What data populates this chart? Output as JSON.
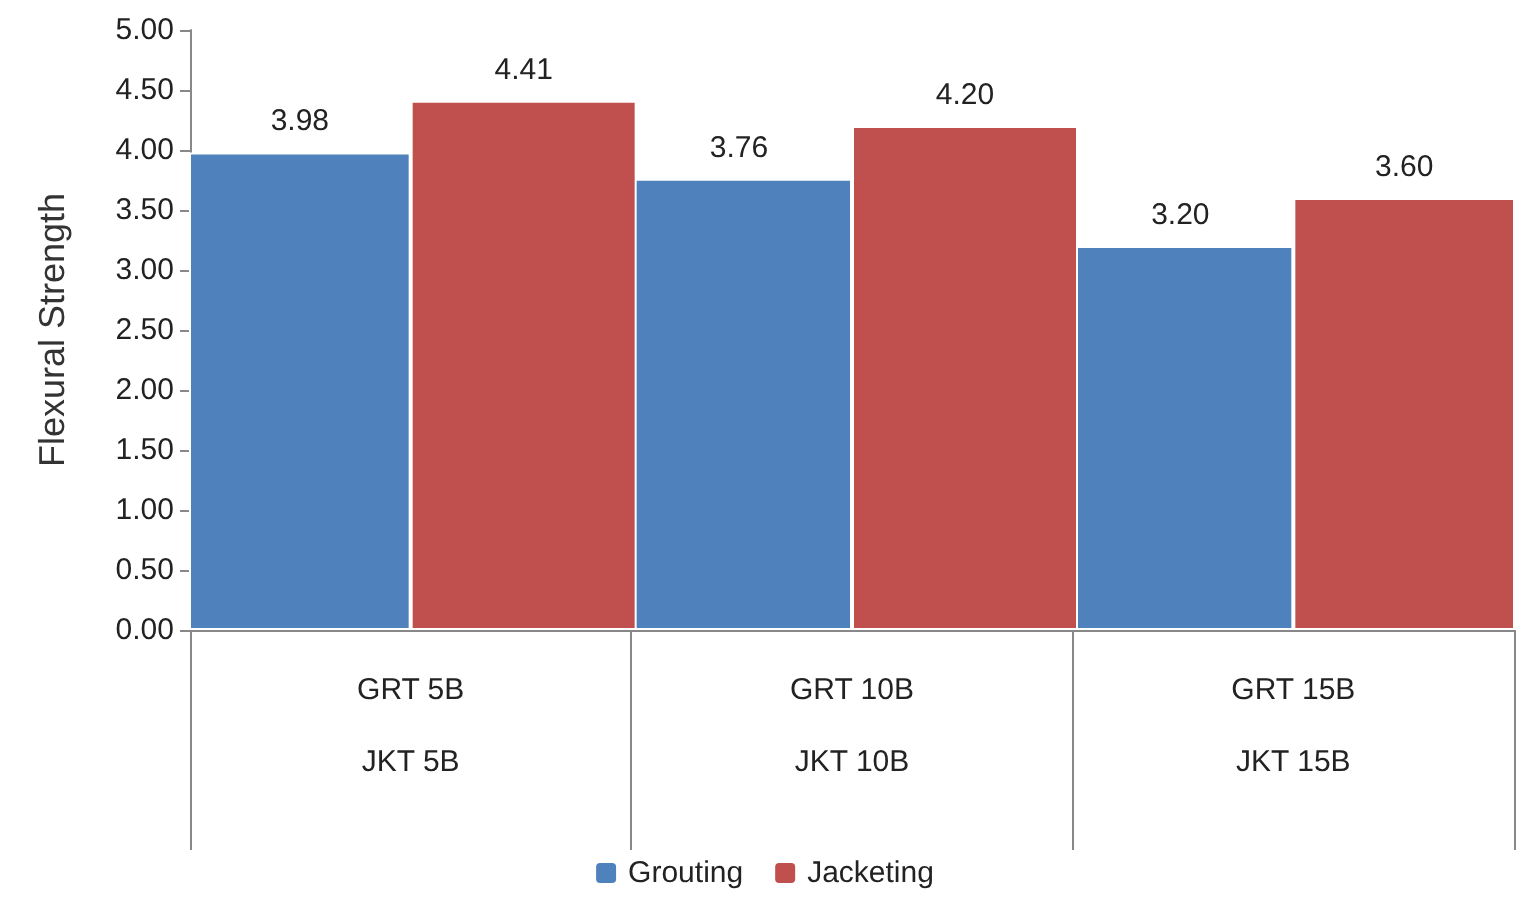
{
  "chart_data": {
    "type": "bar",
    "ylabel": "Flexural Strength",
    "categories": [
      "GRT 5B\nJKT 5B",
      "GRT 10B\nJKT 10B",
      "GRT 15B\nJKT 15B"
    ],
    "series": [
      {
        "name": "Grouting",
        "color": "#4f81bd",
        "values": [
          3.98,
          3.76,
          3.2
        ],
        "value_labels": [
          "3.98",
          "3.76",
          "3.20"
        ]
      },
      {
        "name": "Jacketing",
        "color": "#c0504d",
        "values": [
          4.41,
          4.2,
          3.6
        ],
        "value_labels": [
          "4.41",
          "4.20",
          "3.60"
        ]
      }
    ],
    "ylim": [
      0,
      5
    ],
    "yticks": [
      {
        "value": 0,
        "label": "0.00"
      },
      {
        "value": 0.5,
        "label": "0.50"
      },
      {
        "value": 1,
        "label": "1.00"
      },
      {
        "value": 1.5,
        "label": "1.50"
      },
      {
        "value": 2,
        "label": "2.00"
      },
      {
        "value": 2.5,
        "label": "2.50"
      },
      {
        "value": 3,
        "label": "3.00"
      },
      {
        "value": 3.5,
        "label": "3.50"
      },
      {
        "value": 4,
        "label": "4.00"
      },
      {
        "value": 4.5,
        "label": "4.50"
      },
      {
        "value": 5,
        "label": "5.00"
      }
    ],
    "grid": false,
    "legend": "bottom"
  }
}
